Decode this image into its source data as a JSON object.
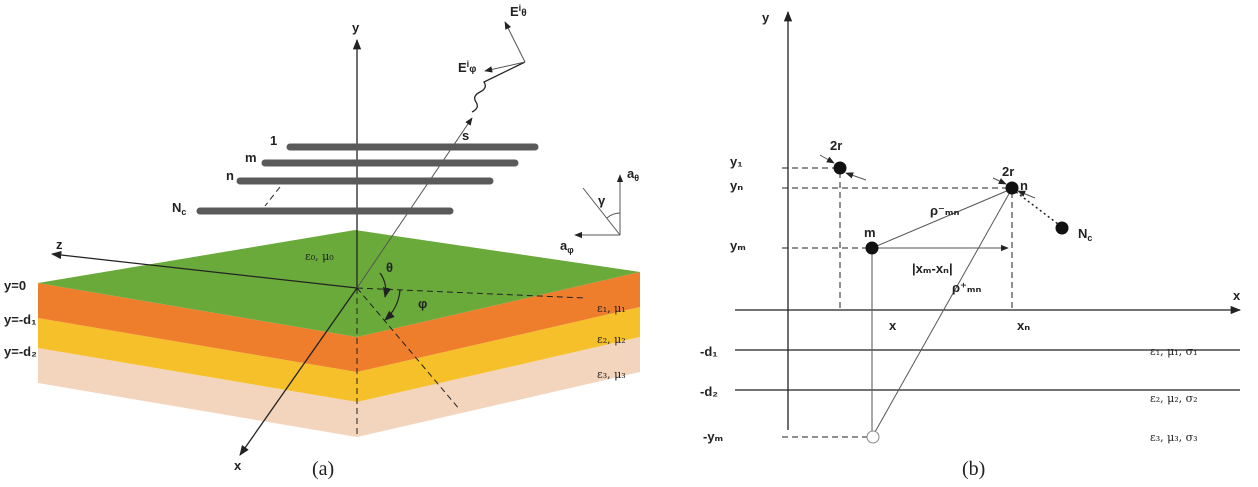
{
  "panel_a": {
    "caption": "(a)",
    "axes": {
      "x": "x",
      "y": "y",
      "z": "z",
      "s": "s"
    },
    "field": {
      "e_theta": {
        "text": "E",
        "sup": "i",
        "sub": "θ"
      },
      "e_phi": {
        "text": "E",
        "sup": "i",
        "sub": "φ"
      }
    },
    "angles": {
      "theta": "θ",
      "phi": "φ",
      "gamma": "γ"
    },
    "unit_vectors": {
      "a_theta": {
        "text": "a",
        "sub": "θ"
      },
      "a_phi": {
        "text": "a",
        "sub": "φ"
      }
    },
    "wires": {
      "first": "1",
      "m": "m",
      "n": "n",
      "last": {
        "text": "N",
        "sub": "c"
      }
    },
    "boundaries": [
      "y=0",
      "y=-d₁",
      "y=-d₂"
    ],
    "media": [
      "ε₀, μ₀",
      "ε₁, μ₁",
      "ε₂, μ₂",
      "ε₃, μ₃"
    ]
  },
  "panel_b": {
    "caption": "(b)",
    "axes": {
      "x": "x",
      "y": "y"
    },
    "y_labels": [
      "y₁",
      "yₙ",
      "yₘ",
      "-d₁",
      "-d₂",
      "-yₘ"
    ],
    "x_labels": [
      "x",
      "xₙ"
    ],
    "particles": {
      "radius_1": "2r",
      "radius_n": "2r",
      "m": "m",
      "n": "n",
      "last": {
        "text": "N",
        "sub": "c"
      }
    },
    "distances": {
      "rho_minus": "ρ⁻ₘₙ",
      "rho_plus": "ρ⁺ₘₙ",
      "dx": "|xₘ-xₙ|"
    },
    "media": [
      "ε₁, μ₁, σ₁",
      "ε₂, μ₂, σ₂",
      "ε₃, μ₃, σ₃"
    ]
  }
}
